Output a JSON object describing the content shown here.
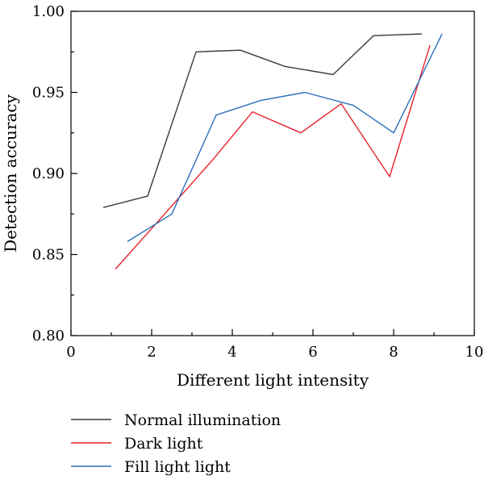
{
  "chart_data": {
    "type": "line",
    "title": "",
    "xlabel": "Different light intensity",
    "ylabel": "Detection accuracy",
    "xlim": [
      0,
      10
    ],
    "ylim": [
      0.8,
      1.0
    ],
    "xticks": [
      0,
      2,
      4,
      6,
      8,
      10
    ],
    "xtick_labels": [
      "0",
      "2",
      "4",
      "6",
      "8",
      "10"
    ],
    "yticks": [
      0.8,
      0.85,
      0.9,
      0.95,
      1.0
    ],
    "ytick_labels": [
      "0.80",
      "0.85",
      "0.90",
      "0.95",
      "1.00"
    ],
    "grid": false,
    "legend_position": "bottom",
    "series": [
      {
        "name": "Normal illumination",
        "color": "#3a3a3a",
        "points": [
          [
            0.8,
            0.879
          ],
          [
            1.9,
            0.886
          ],
          [
            3.1,
            0.975
          ],
          [
            4.2,
            0.976
          ],
          [
            5.3,
            0.966
          ],
          [
            6.5,
            0.961
          ],
          [
            7.5,
            0.985
          ],
          [
            8.7,
            0.986
          ]
        ]
      },
      {
        "name": "Dark light",
        "color": "#e8212b",
        "points": [
          [
            1.1,
            0.841
          ],
          [
            2.0,
            0.866
          ],
          [
            3.5,
            0.908
          ],
          [
            4.5,
            0.938
          ],
          [
            5.7,
            0.925
          ],
          [
            6.7,
            0.943
          ],
          [
            7.9,
            0.898
          ],
          [
            8.9,
            0.979
          ]
        ]
      },
      {
        "name": "Fill light light",
        "color": "#2a6ebb",
        "points": [
          [
            1.4,
            0.858
          ],
          [
            2.5,
            0.875
          ],
          [
            3.6,
            0.936
          ],
          [
            4.7,
            0.945
          ],
          [
            5.8,
            0.95
          ],
          [
            7.0,
            0.942
          ],
          [
            8.0,
            0.925
          ],
          [
            9.2,
            0.986
          ]
        ]
      }
    ]
  }
}
